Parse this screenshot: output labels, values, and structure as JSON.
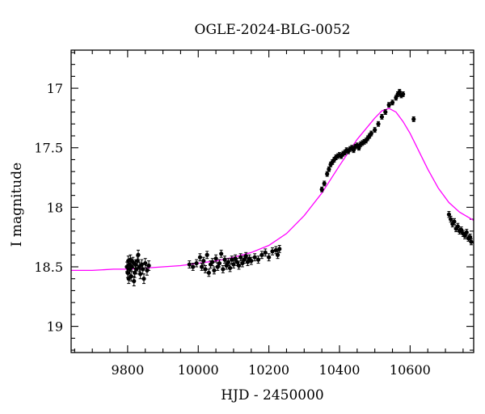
{
  "chart_data": {
    "type": "scatter",
    "title": "OGLE-2024-BLG-0052",
    "xlabel": "HJD - 2450000",
    "ylabel": "I magnitude",
    "xlim": [
      9640,
      10780
    ],
    "ylim": [
      19.22,
      16.68
    ],
    "y_inverted": true,
    "x_ticks": [
      9800,
      10000,
      10200,
      10400,
      10600
    ],
    "x_tick_labels": [
      "9800",
      "10000",
      "10200",
      "10400",
      "10600"
    ],
    "y_ticks": [
      17,
      17.5,
      18,
      18.5,
      19
    ],
    "y_tick_labels": [
      "17",
      "17.5",
      "18",
      "18.5",
      "19"
    ],
    "grid": false,
    "colors": {
      "data": "#000000",
      "model": "#ff00ff"
    },
    "series": [
      {
        "style": "points-with-errorbars",
        "x": [
          9798,
          9800,
          9802,
          9803,
          9805,
          9806,
          9808,
          9810,
          9812,
          9815,
          9818,
          9820,
          9822,
          9825,
          9828,
          9830,
          9833,
          9836,
          9840,
          9843,
          9846,
          9850,
          9855,
          9860,
          9975,
          9985,
          9995,
          10005,
          10010,
          10015,
          10020,
          10025,
          10030,
          10035,
          10040,
          10045,
          10050,
          10055,
          10060,
          10065,
          10070,
          10075,
          10080,
          10085,
          10090,
          10095,
          10100,
          10105,
          10110,
          10115,
          10120,
          10125,
          10130,
          10135,
          10140,
          10145,
          10150,
          10160,
          10170,
          10180,
          10190,
          10200,
          10210,
          10220,
          10225,
          10230,
          10350,
          10357,
          10365,
          10370,
          10375,
          10380,
          10385,
          10390,
          10395,
          10400,
          10405,
          10410,
          10415,
          10420,
          10425,
          10430,
          10435,
          10440,
          10445,
          10450,
          10455,
          10460,
          10465,
          10470,
          10475,
          10480,
          10485,
          10490,
          10500,
          10510,
          10520,
          10530,
          10540,
          10550,
          10560,
          10565,
          10570,
          10575,
          10580,
          10610,
          10710,
          10715,
          10720,
          10725,
          10730,
          10735,
          10740,
          10745,
          10750,
          10755,
          10760,
          10765,
          10770,
          10773
        ],
        "y": [
          18.5,
          18.55,
          18.45,
          18.6,
          18.48,
          18.52,
          18.44,
          18.58,
          18.5,
          18.46,
          18.62,
          18.55,
          18.48,
          18.52,
          18.45,
          18.4,
          18.5,
          18.56,
          18.48,
          18.52,
          18.6,
          18.47,
          18.53,
          18.49,
          18.48,
          18.5,
          18.47,
          18.42,
          18.5,
          18.45,
          18.52,
          18.4,
          18.55,
          18.48,
          18.46,
          18.53,
          18.43,
          18.5,
          18.47,
          18.39,
          18.52,
          18.44,
          18.49,
          18.46,
          18.51,
          18.44,
          18.48,
          18.43,
          18.46,
          18.49,
          18.42,
          18.47,
          18.44,
          18.41,
          18.46,
          18.43,
          18.45,
          18.42,
          18.44,
          18.4,
          18.38,
          18.42,
          18.37,
          18.36,
          18.4,
          18.35,
          17.85,
          17.8,
          17.72,
          17.68,
          17.64,
          17.62,
          17.6,
          17.58,
          17.57,
          17.56,
          17.57,
          17.55,
          17.54,
          17.52,
          17.53,
          17.51,
          17.5,
          17.52,
          17.49,
          17.48,
          17.5,
          17.47,
          17.46,
          17.45,
          17.44,
          17.42,
          17.4,
          17.38,
          17.35,
          17.3,
          17.24,
          17.2,
          17.14,
          17.12,
          17.08,
          17.05,
          17.03,
          17.06,
          17.05,
          17.26,
          18.06,
          18.1,
          18.14,
          18.12,
          18.18,
          18.16,
          18.2,
          18.19,
          18.22,
          18.24,
          18.21,
          18.26,
          18.25,
          18.29
        ],
        "yerr": [
          0.04,
          0.04,
          0.04,
          0.04,
          0.04,
          0.04,
          0.04,
          0.04,
          0.04,
          0.04,
          0.04,
          0.04,
          0.04,
          0.04,
          0.04,
          0.04,
          0.04,
          0.04,
          0.04,
          0.04,
          0.04,
          0.04,
          0.04,
          0.04,
          0.03,
          0.03,
          0.03,
          0.03,
          0.03,
          0.03,
          0.03,
          0.03,
          0.03,
          0.03,
          0.03,
          0.03,
          0.03,
          0.03,
          0.03,
          0.03,
          0.03,
          0.03,
          0.03,
          0.03,
          0.03,
          0.03,
          0.03,
          0.03,
          0.03,
          0.03,
          0.03,
          0.03,
          0.03,
          0.03,
          0.03,
          0.03,
          0.03,
          0.03,
          0.03,
          0.03,
          0.03,
          0.03,
          0.03,
          0.03,
          0.03,
          0.03,
          0.02,
          0.02,
          0.02,
          0.02,
          0.02,
          0.02,
          0.02,
          0.02,
          0.02,
          0.02,
          0.02,
          0.02,
          0.02,
          0.02,
          0.02,
          0.02,
          0.02,
          0.02,
          0.02,
          0.02,
          0.02,
          0.02,
          0.02,
          0.02,
          0.02,
          0.02,
          0.02,
          0.02,
          0.02,
          0.02,
          0.02,
          0.02,
          0.02,
          0.02,
          0.02,
          0.02,
          0.02,
          0.02,
          0.02,
          0.02,
          0.025,
          0.025,
          0.025,
          0.025,
          0.025,
          0.025,
          0.025,
          0.025,
          0.025,
          0.025,
          0.025,
          0.025,
          0.025,
          0.025
        ]
      },
      {
        "style": "line",
        "x": [
          9640,
          9700,
          9760,
          9800,
          9850,
          9900,
          9950,
          10000,
          10050,
          10100,
          10150,
          10200,
          10250,
          10300,
          10350,
          10400,
          10450,
          10500,
          10520,
          10540,
          10560,
          10580,
          10600,
          10620,
          10650,
          10680,
          10710,
          10740,
          10780
        ],
        "y": [
          18.53,
          18.53,
          18.52,
          18.52,
          18.51,
          18.5,
          18.49,
          18.47,
          18.45,
          18.42,
          18.38,
          18.32,
          18.22,
          18.07,
          17.88,
          17.65,
          17.43,
          17.25,
          17.19,
          17.17,
          17.2,
          17.28,
          17.38,
          17.5,
          17.68,
          17.84,
          17.96,
          18.04,
          18.11
        ]
      }
    ]
  }
}
